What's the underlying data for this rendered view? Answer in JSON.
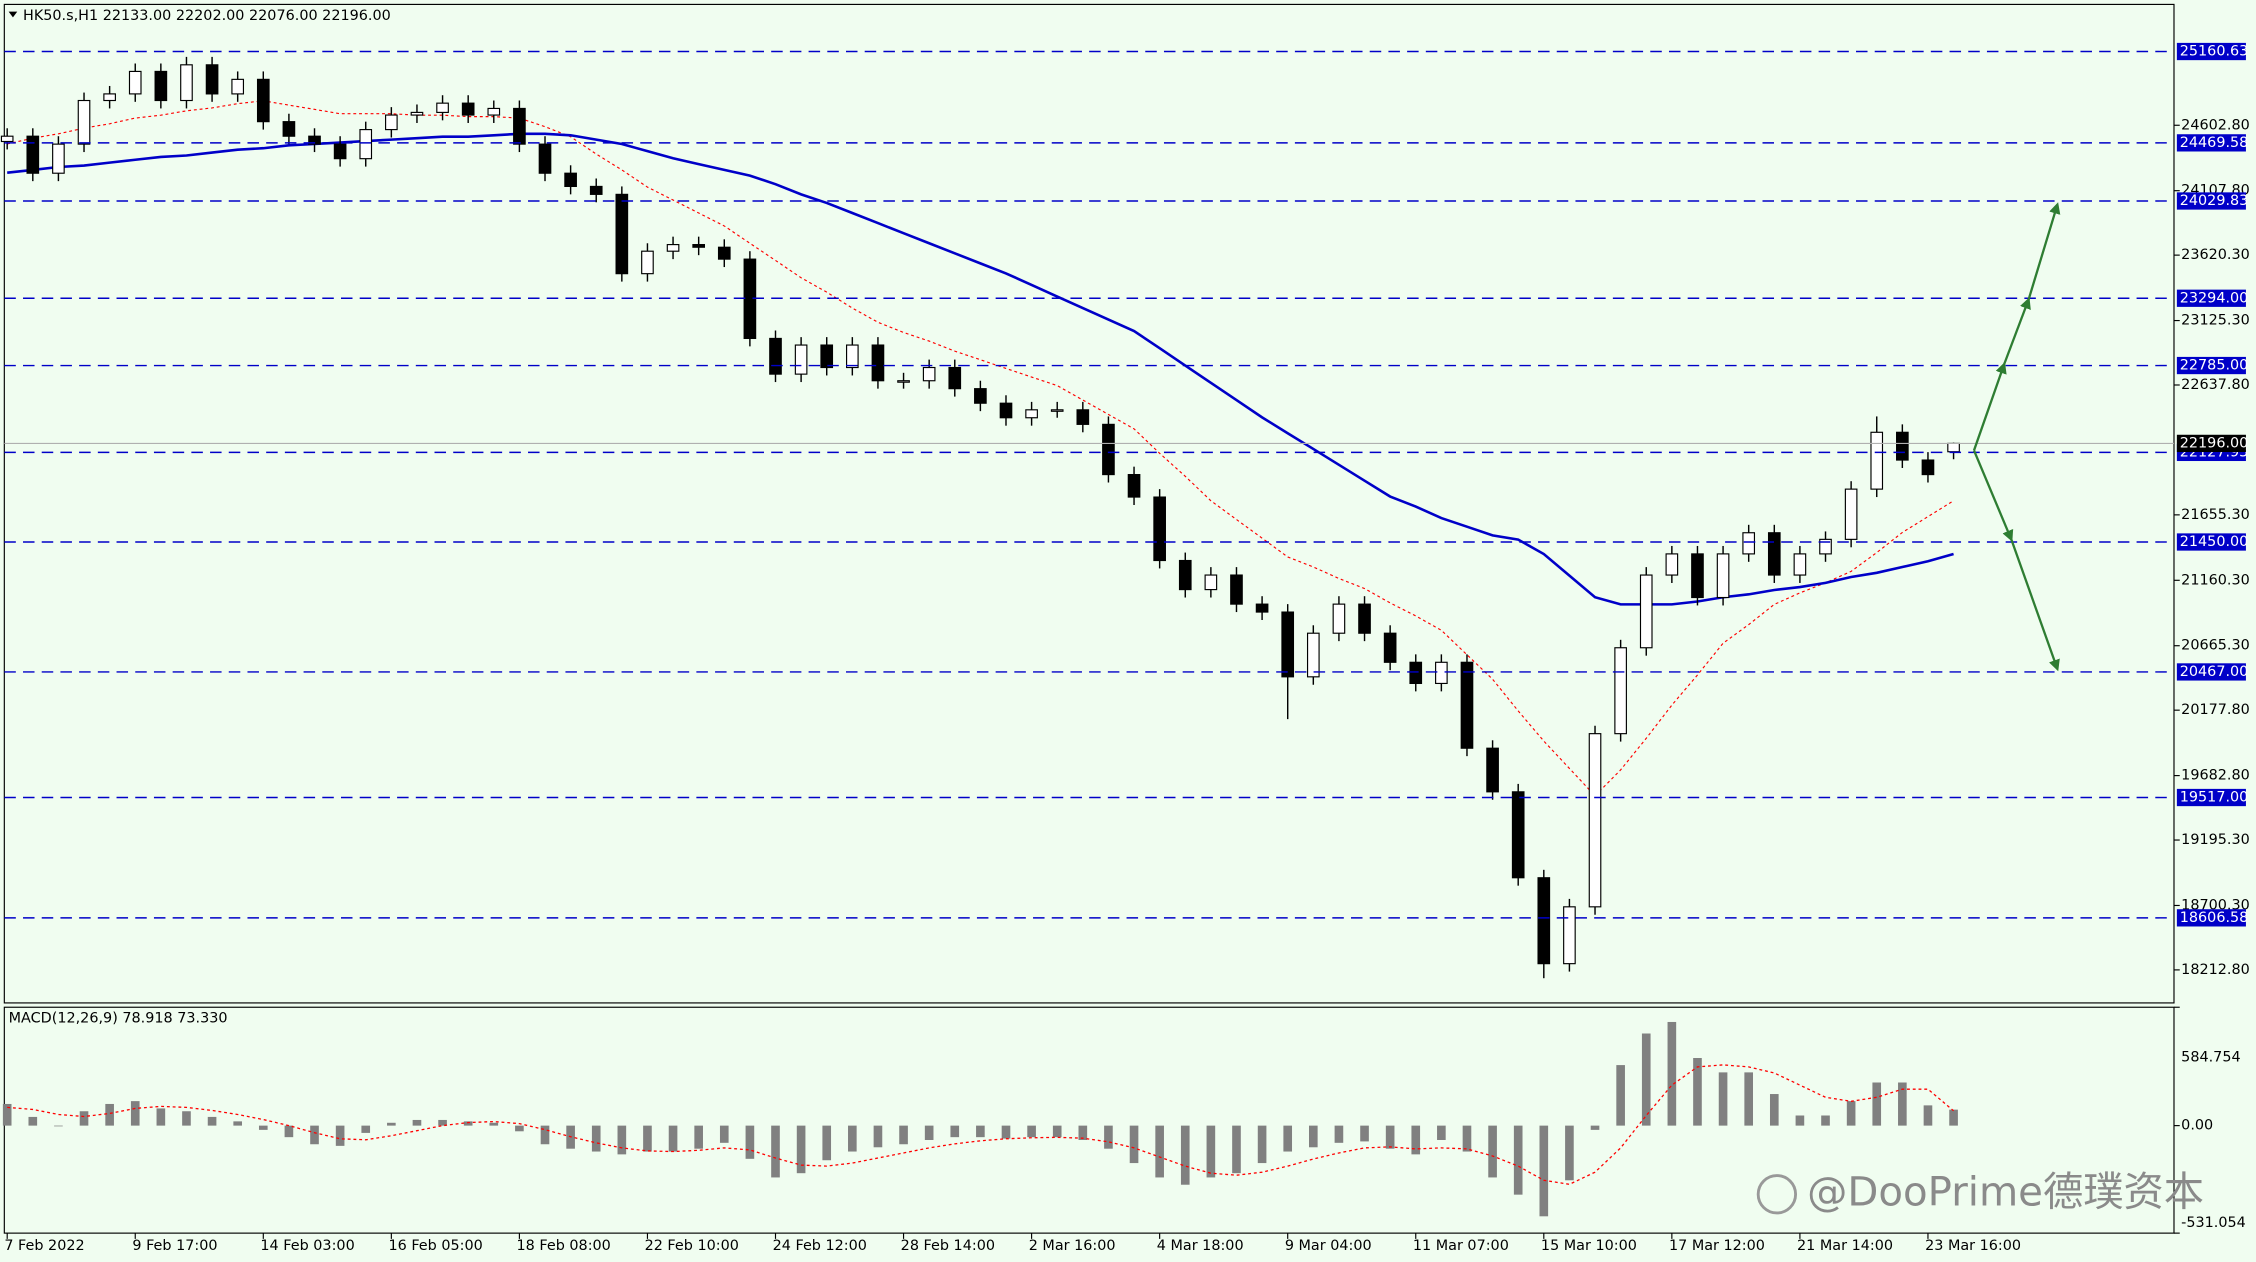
{
  "chart_data": [
    {
      "type": "candlestick",
      "title": "HK50.s,H1  22133.00 22202.00 22076.00 22196.00",
      "categories": [
        "7 Feb 2022",
        null,
        null,
        null,
        null,
        "9 Feb 17:00",
        null,
        null,
        null,
        null,
        "14 Feb 03:00",
        null,
        null,
        null,
        null,
        "16 Feb 05:00",
        null,
        null,
        null,
        null,
        "18 Feb 08:00",
        null,
        null,
        null,
        null,
        "22 Feb 10:00",
        null,
        null,
        null,
        null,
        "24 Feb 12:00",
        null,
        null,
        null,
        null,
        "28 Feb 14:00",
        null,
        null,
        null,
        null,
        "2 Mar 16:00",
        null,
        null,
        null,
        null,
        "4 Mar 18:00",
        null,
        null,
        null,
        null,
        "9 Mar 04:00",
        null,
        null,
        null,
        null,
        "11 Mar 07:00",
        null,
        null,
        null,
        null,
        "15 Mar 10:00",
        null,
        null,
        null,
        null,
        "17 Mar 12:00",
        null,
        null,
        null,
        null,
        "21 Mar 14:00",
        null,
        null,
        null,
        null,
        "23 Mar 16:00",
        null
      ],
      "open": [
        24480,
        24520,
        24240,
        24460,
        24790,
        24840,
        25010,
        24790,
        25060,
        24840,
        24950,
        24630,
        24520,
        24460,
        24350,
        24570,
        24680,
        24700,
        24770,
        24680,
        24730,
        24460,
        24240,
        24140,
        24080,
        23480,
        23650,
        23700,
        23680,
        23590,
        22990,
        22720,
        22940,
        22770,
        22940,
        22670,
        22670,
        22770,
        22610,
        22500,
        22390,
        22450,
        22450,
        22340,
        21960,
        21790,
        21310,
        21090,
        21200,
        20980,
        20920,
        20430,
        20760,
        20980,
        20760,
        20540,
        20380,
        20540,
        19890,
        19560,
        18910,
        18260,
        18690,
        20000,
        20650,
        21200,
        21360,
        21030,
        21360,
        21520,
        21200,
        21360,
        21470,
        21850,
        22280,
        22070,
        22133
      ],
      "high": [
        24580,
        24580,
        24520,
        24850,
        24900,
        25070,
        25070,
        25120,
        25120,
        25010,
        25010,
        24690,
        24580,
        24520,
        24630,
        24740,
        24760,
        24830,
        24830,
        24790,
        24790,
        24520,
        24300,
        24200,
        24140,
        23710,
        23760,
        23760,
        23740,
        23650,
        23050,
        23000,
        23000,
        23000,
        23000,
        22730,
        22830,
        22830,
        22670,
        22560,
        22510,
        22510,
        22510,
        22400,
        22020,
        21850,
        21370,
        21260,
        21260,
        21040,
        20980,
        20820,
        21040,
        21040,
        20820,
        20600,
        20600,
        20600,
        19950,
        19620,
        18970,
        18750,
        20060,
        20710,
        21260,
        21420,
        21420,
        21420,
        21580,
        21580,
        21420,
        21530,
        21910,
        22400,
        22340,
        22130,
        22202
      ],
      "low": [
        24420,
        24180,
        24180,
        24400,
        24730,
        24780,
        24730,
        24730,
        24780,
        24780,
        24570,
        24460,
        24400,
        24290,
        24290,
        24510,
        24620,
        24640,
        24620,
        24620,
        24400,
        24180,
        24080,
        24020,
        23420,
        23420,
        23590,
        23620,
        23530,
        22930,
        22660,
        22660,
        22710,
        22710,
        22610,
        22610,
        22610,
        22550,
        22440,
        22330,
        22330,
        22390,
        22280,
        21900,
        21730,
        21250,
        21030,
        21030,
        20920,
        20860,
        20110,
        20370,
        20700,
        20700,
        20480,
        20320,
        20320,
        19830,
        19500,
        18850,
        18150,
        18200,
        18630,
        19940,
        20590,
        21140,
        20970,
        20970,
        21300,
        21140,
        21140,
        21300,
        21410,
        21790,
        22010,
        21900,
        22076
      ],
      "close": [
        24520,
        24240,
        24460,
        24790,
        24840,
        25010,
        24790,
        25060,
        24840,
        24950,
        24630,
        24520,
        24460,
        24350,
        24570,
        24680,
        24700,
        24770,
        24680,
        24730,
        24460,
        24240,
        24140,
        24080,
        23480,
        23650,
        23700,
        23680,
        23590,
        22990,
        22720,
        22940,
        22770,
        22940,
        22670,
        22670,
        22770,
        22610,
        22500,
        22390,
        22450,
        22450,
        22340,
        21960,
        21790,
        21310,
        21090,
        21200,
        20980,
        20920,
        20430,
        20760,
        20980,
        20760,
        20540,
        20380,
        20540,
        19890,
        19560,
        18910,
        18260,
        18690,
        20000,
        20650,
        21200,
        21360,
        21030,
        21360,
        21520,
        21200,
        21360,
        21470,
        21850,
        22280,
        22070,
        21960,
        22196
      ],
      "up_color": "#ffffff",
      "down_color": "#000000",
      "wick_color": "#000000",
      "overlays": [
        {
          "color": "#ff0000",
          "style": "dotted",
          "values": [
            24461,
            24505,
            24538,
            24581,
            24614,
            24657,
            24679,
            24712,
            24734,
            24766,
            24788,
            24755,
            24723,
            24690,
            24690,
            24690,
            24679,
            24679,
            24668,
            24668,
            24657,
            24592,
            24516,
            24385,
            24265,
            24135,
            24037,
            23939,
            23841,
            23710,
            23580,
            23449,
            23340,
            23220,
            23112,
            23035,
            22970,
            22894,
            22829,
            22763,
            22698,
            22633,
            22524,
            22415,
            22306,
            22121,
            21947,
            21762,
            21620,
            21479,
            21337,
            21261,
            21174,
            21098,
            20989,
            20891,
            20782,
            20597,
            20412,
            20172,
            19944,
            19737,
            19530,
            19726,
            19965,
            20216,
            20444,
            20684,
            20825,
            20978,
            21065,
            21141,
            21228,
            21370,
            21522,
            21642,
            21762
          ]
        },
        {
          "color": "#0000c8",
          "style": "solid",
          "values": [
            24244,
            24265,
            24287,
            24298,
            24320,
            24342,
            24363,
            24374,
            24396,
            24418,
            24429,
            24451,
            24461,
            24472,
            24483,
            24494,
            24505,
            24516,
            24516,
            24527,
            24538,
            24538,
            24527,
            24494,
            24461,
            24407,
            24353,
            24309,
            24265,
            24222,
            24157,
            24080,
            24015,
            23939,
            23863,
            23786,
            23710,
            23634,
            23558,
            23482,
            23395,
            23307,
            23220,
            23133,
            23046,
            22916,
            22785,
            22654,
            22524,
            22393,
            22273,
            22154,
            22034,
            21914,
            21794,
            21718,
            21631,
            21566,
            21500,
            21468,
            21359,
            21196,
            21032,
            20978,
            20978,
            20978,
            21000,
            21032,
            21054,
            21087,
            21109,
            21141,
            21185,
            21217,
            21261,
            21304,
            21359
          ]
        }
      ],
      "levels": [
        25160.63,
        24469.58,
        24029.83,
        {
          "value": 23294,
          "label": "23294.00"
        },
        {
          "value": 22785,
          "label": "22785.00"
        },
        22127.93,
        {
          "value": 21450,
          "label": "21450.00"
        },
        {
          "value": 20467,
          "label": "20467.00"
        },
        {
          "value": 19517,
          "label": "19517.00"
        },
        18606.58
      ],
      "level_color": "#0000c8",
      "last_price": {
        "value": 22196,
        "label": "22196.00"
      },
      "ylim": [
        17963,
        25517
      ],
      "yticks": [
        {
          "value": 24602.8,
          "label": "24602.80"
        },
        {
          "value": 24107.8,
          "label": "24107.80"
        },
        {
          "value": 23620.3,
          "label": "23620.30"
        },
        {
          "value": 23125.3,
          "label": "23125.30"
        },
        {
          "value": 22637.8,
          "label": "22637.80"
        },
        {
          "value": 21655.3,
          "label": "21655.30"
        },
        {
          "value": 21160.3,
          "label": "21160.30"
        },
        {
          "value": 20665.3,
          "label": "20665.30"
        },
        {
          "value": 20177.8,
          "label": "20177.80"
        },
        {
          "value": 19682.8,
          "label": "19682.80"
        },
        {
          "value": 19195.3,
          "label": "19195.30"
        },
        {
          "value": 18700.3,
          "label": "18700.30"
        },
        {
          "value": 18212.8,
          "label": "18212.80"
        }
      ],
      "grid": false
    },
    {
      "type": "macd",
      "title": "MACD(12,26,9) 78.918 73.330",
      "histogram": [
        107,
        43,
        0,
        71,
        107,
        121,
        85,
        71,
        43,
        21,
        -21,
        -57,
        -92,
        -100,
        -36,
        14,
        28,
        28,
        21,
        14,
        -28,
        -92,
        -114,
        -128,
        -142,
        -128,
        -128,
        -114,
        -85,
        -164,
        -256,
        -235,
        -171,
        -128,
        -107,
        -92,
        -71,
        -57,
        -57,
        -64,
        -57,
        -57,
        -71,
        -114,
        -185,
        -256,
        -292,
        -256,
        -235,
        -185,
        -128,
        -107,
        -85,
        -78,
        -114,
        -142,
        -71,
        -128,
        -256,
        -341,
        -448,
        -270,
        -21,
        299,
        455,
        512,
        334,
        263,
        263,
        156,
        50,
        50,
        121,
        213,
        213,
        100,
        78.918
      ],
      "signal": [
        90,
        80,
        55,
        45,
        60,
        85,
        95,
        90,
        75,
        55,
        30,
        0,
        -35,
        -65,
        -70,
        -50,
        -25,
        0,
        15,
        20,
        10,
        -20,
        -55,
        -85,
        -110,
        -125,
        -128,
        -122,
        -110,
        -120,
        -160,
        -195,
        -200,
        -185,
        -160,
        -135,
        -110,
        -90,
        -75,
        -65,
        -60,
        -58,
        -62,
        -80,
        -110,
        -155,
        -200,
        -235,
        -245,
        -230,
        -200,
        -165,
        -135,
        -110,
        -105,
        -115,
        -110,
        -115,
        -150,
        -200,
        -270,
        -290,
        -230,
        -110,
        50,
        200,
        290,
        300,
        290,
        260,
        200,
        140,
        120,
        140,
        180,
        180,
        73.33
      ],
      "histogram_color": "#808080",
      "signal_color": "#ff0000",
      "ylim": [
        -531.054,
        584.754
      ],
      "yticks": [
        584.754,
        {
          "value": 0,
          "label": "0.00"
        },
        -531.054
      ]
    }
  ],
  "watermark": "@DooPrime德璞资本"
}
